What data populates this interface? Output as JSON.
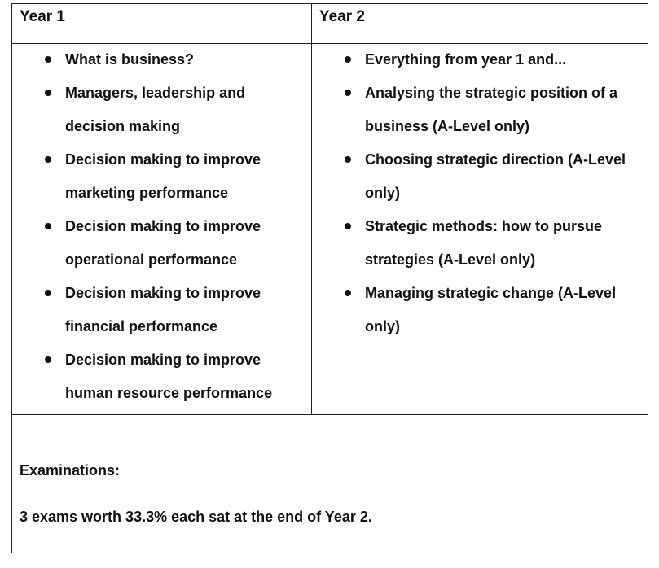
{
  "table": {
    "col1_header": "Year 1",
    "col2_header": "Year 2",
    "year1_items": [
      {
        "lines": [
          "What is business?"
        ]
      },
      {
        "lines": [
          "Managers, leadership and",
          "decision making"
        ]
      },
      {
        "lines": [
          "Decision making to improve",
          "marketing performance"
        ]
      },
      {
        "lines": [
          "Decision making to improve",
          "operational performance"
        ]
      },
      {
        "lines": [
          "Decision making to improve",
          "financial performance"
        ]
      },
      {
        "lines": [
          "Decision making to improve",
          "human resource performance"
        ]
      }
    ],
    "year2_items": [
      {
        "lines": [
          "Everything from year 1 and..."
        ]
      },
      {
        "lines": [
          "Analysing the strategic position of a",
          "business (A-Level only)"
        ]
      },
      {
        "lines": [
          "Choosing strategic direction (A-Level",
          "only)"
        ]
      },
      {
        "lines": [
          "Strategic methods: how to pursue",
          "strategies (A-Level only)"
        ]
      },
      {
        "lines": [
          "Managing strategic change (A-Level",
          "only)"
        ]
      }
    ]
  },
  "exams": {
    "label": "Examinations:",
    "text": "3 exams worth 33.3% each sat at the end of Year 2."
  }
}
